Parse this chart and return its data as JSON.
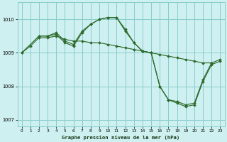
{
  "title": "Graphe pression niveau de la mer (hPa)",
  "bg_color": "#cff0f0",
  "grid_color": "#88cccc",
  "line_color": "#2d6a2d",
  "xlim": [
    -0.5,
    23.5
  ],
  "ylim": [
    1006.8,
    1010.5
  ],
  "yticks": [
    1007,
    1008,
    1009,
    1010
  ],
  "xticks": [
    0,
    1,
    2,
    3,
    4,
    5,
    6,
    7,
    8,
    9,
    10,
    11,
    12,
    13,
    14,
    15,
    16,
    17,
    18,
    19,
    20,
    21,
    22,
    23
  ],
  "series": [
    {
      "x": [
        0,
        1,
        2,
        3,
        4,
        5,
        6,
        7,
        8,
        9,
        10,
        11,
        12,
        13,
        14,
        15,
        16,
        17,
        18,
        19,
        20,
        21,
        22
      ],
      "y": [
        1009.0,
        1009.2,
        1009.45,
        1009.45,
        1009.5,
        1009.4,
        1009.35,
        1009.35,
        1009.3,
        1009.3,
        1009.25,
        1009.2,
        1009.15,
        1009.1,
        1009.05,
        1009.0,
        1008.95,
        1008.9,
        1008.85,
        1008.8,
        1008.75,
        1008.7,
        1008.7
      ]
    },
    {
      "x": [
        0,
        2,
        3,
        4,
        5,
        6,
        7,
        8,
        9,
        10,
        11,
        12,
        13,
        14,
        15,
        16,
        17,
        18,
        19,
        20,
        21,
        22,
        23
      ],
      "y": [
        1009.0,
        1009.5,
        1009.5,
        1009.55,
        1009.3,
        1009.2,
        1009.6,
        1009.85,
        1010.0,
        1010.05,
        1010.05,
        1009.65,
        1009.3,
        1009.05,
        1009.0,
        1008.0,
        1007.6,
        1007.55,
        1007.45,
        1007.5,
        1008.2,
        1008.7,
        1008.8
      ]
    },
    {
      "x": [
        2,
        3,
        4,
        5,
        6,
        7,
        8,
        9,
        10,
        11,
        12,
        13,
        14,
        15,
        16,
        17,
        18,
        19,
        20,
        21,
        22,
        23
      ],
      "y": [
        1009.5,
        1009.5,
        1009.6,
        1009.35,
        1009.25,
        1009.65,
        1009.85,
        1010.0,
        1010.05,
        1010.05,
        1009.7,
        1009.3,
        1009.05,
        1009.0,
        1008.0,
        1007.6,
        1007.5,
        1007.4,
        1007.45,
        1008.15,
        1008.65,
        1008.75
      ]
    }
  ]
}
